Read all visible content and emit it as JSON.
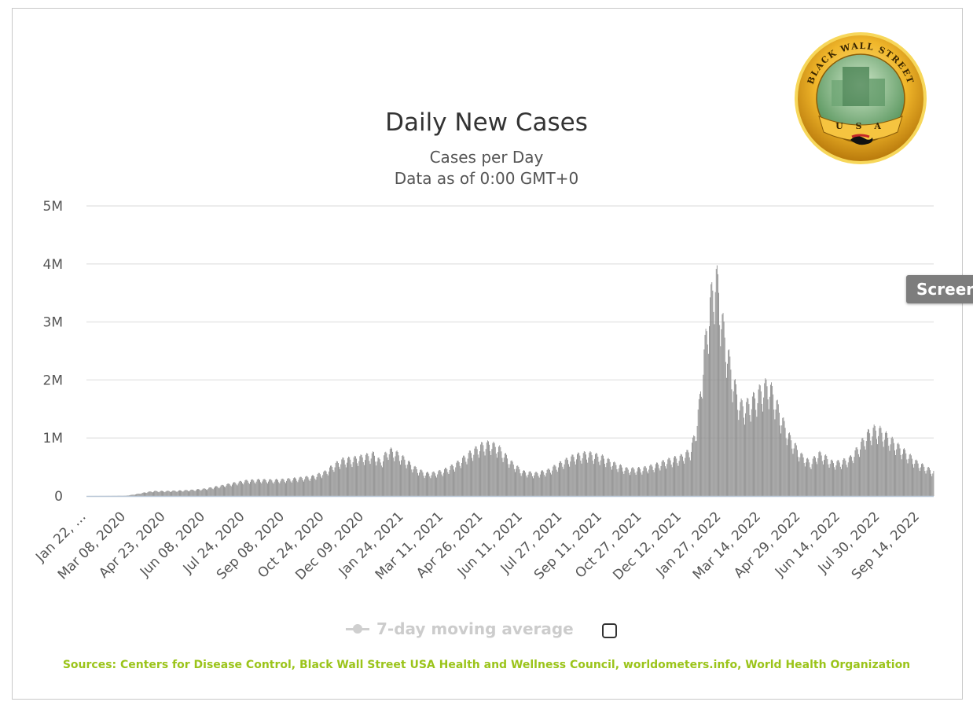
{
  "tooltip_button": {
    "label": "Screen"
  },
  "logo": {
    "ring_text": "BLACK WALL STREET",
    "bottom_text": "U S A",
    "ring_color": "#e0a31c",
    "inner_color": "#5f9e63"
  },
  "legend": {
    "label": "7-day moving average",
    "color": "#cccccc"
  },
  "sources": "Sources: Centers for Disease Control, Black Wall Street USA Health and Wellness Council, worldometers.info, World Health Organization",
  "colors": {
    "bar": "#8c8c8c",
    "grid": "#e6e6e6",
    "axis": "#b9c7d6",
    "sources": "#9bc41a"
  },
  "chart_data": {
    "type": "bar",
    "title": "Daily New Cases",
    "subtitle": [
      "Cases per Day",
      "Data as of 0:00 GMT+0"
    ],
    "xlabel": "",
    "ylabel": "",
    "ylim": [
      0,
      5000000
    ],
    "yticks": [
      {
        "value": 0,
        "label": "0"
      },
      {
        "value": 1000000,
        "label": "1M"
      },
      {
        "value": 2000000,
        "label": "2M"
      },
      {
        "value": 3000000,
        "label": "3M"
      },
      {
        "value": 4000000,
        "label": "4M"
      },
      {
        "value": 5000000,
        "label": "5M"
      }
    ],
    "xlim": [
      "2020-01-22",
      "2022-09-30"
    ],
    "xticks": [
      {
        "date": "2020-01-22",
        "label": "Jan 22, …"
      },
      {
        "date": "2020-03-08",
        "label": "Mar 08, 2020"
      },
      {
        "date": "2020-04-23",
        "label": "Apr 23, 2020"
      },
      {
        "date": "2020-06-08",
        "label": "Jun 08, 2020"
      },
      {
        "date": "2020-07-24",
        "label": "Jul 24, 2020"
      },
      {
        "date": "2020-09-08",
        "label": "Sep 08, 2020"
      },
      {
        "date": "2020-10-24",
        "label": "Oct 24, 2020"
      },
      {
        "date": "2020-12-09",
        "label": "Dec 09, 2020"
      },
      {
        "date": "2021-01-24",
        "label": "Jan 24, 2021"
      },
      {
        "date": "2021-03-11",
        "label": "Mar 11, 2021"
      },
      {
        "date": "2021-04-26",
        "label": "Apr 26, 2021"
      },
      {
        "date": "2021-06-11",
        "label": "Jun 11, 2021"
      },
      {
        "date": "2021-07-27",
        "label": "Jul 27, 2021"
      },
      {
        "date": "2021-09-11",
        "label": "Sep 11, 2021"
      },
      {
        "date": "2021-10-27",
        "label": "Oct 27, 2021"
      },
      {
        "date": "2021-12-12",
        "label": "Dec 12, 2021"
      },
      {
        "date": "2022-01-27",
        "label": "Jan 27, 2022"
      },
      {
        "date": "2022-03-14",
        "label": "Mar 14, 2022"
      },
      {
        "date": "2022-04-29",
        "label": "Apr 29, 2022"
      },
      {
        "date": "2022-06-14",
        "label": "Jun 14, 2022"
      },
      {
        "date": "2022-07-30",
        "label": "Jul 30, 2022"
      },
      {
        "date": "2022-09-14",
        "label": "Sep 14, 2022"
      }
    ],
    "series": [
      {
        "name": "Daily New Cases",
        "points": [
          [
            "2020-01-22",
            0
          ],
          [
            "2020-02-20",
            2000
          ],
          [
            "2020-03-08",
            5000
          ],
          [
            "2020-03-20",
            30000
          ],
          [
            "2020-04-01",
            65000
          ],
          [
            "2020-04-10",
            80000
          ],
          [
            "2020-04-23",
            80000
          ],
          [
            "2020-05-10",
            88000
          ],
          [
            "2020-05-25",
            100000
          ],
          [
            "2020-06-08",
            120000
          ],
          [
            "2020-06-25",
            165000
          ],
          [
            "2020-07-10",
            210000
          ],
          [
            "2020-07-24",
            250000
          ],
          [
            "2020-08-10",
            265000
          ],
          [
            "2020-08-25",
            260000
          ],
          [
            "2020-09-08",
            270000
          ],
          [
            "2020-09-25",
            295000
          ],
          [
            "2020-10-10",
            320000
          ],
          [
            "2020-10-24",
            390000
          ],
          [
            "2020-11-05",
            520000
          ],
          [
            "2020-11-15",
            600000
          ],
          [
            "2020-11-25",
            610000
          ],
          [
            "2020-12-09",
            650000
          ],
          [
            "2020-12-20",
            690000
          ],
          [
            "2020-12-28",
            560000
          ],
          [
            "2021-01-06",
            760000
          ],
          [
            "2021-01-13",
            730000
          ],
          [
            "2021-01-24",
            620000
          ],
          [
            "2021-02-05",
            470000
          ],
          [
            "2021-02-18",
            370000
          ],
          [
            "2021-03-01",
            380000
          ],
          [
            "2021-03-11",
            420000
          ],
          [
            "2021-03-25",
            520000
          ],
          [
            "2021-04-10",
            700000
          ],
          [
            "2021-04-26",
            850000
          ],
          [
            "2021-05-05",
            860000
          ],
          [
            "2021-05-15",
            780000
          ],
          [
            "2021-05-28",
            560000
          ],
          [
            "2021-06-11",
            400000
          ],
          [
            "2021-06-25",
            370000
          ],
          [
            "2021-07-10",
            420000
          ],
          [
            "2021-07-27",
            560000
          ],
          [
            "2021-08-10",
            660000
          ],
          [
            "2021-08-25",
            700000
          ],
          [
            "2021-09-11",
            640000
          ],
          [
            "2021-09-25",
            530000
          ],
          [
            "2021-10-10",
            440000
          ],
          [
            "2021-10-27",
            450000
          ],
          [
            "2021-11-10",
            500000
          ],
          [
            "2021-11-25",
            580000
          ],
          [
            "2021-12-12",
            650000
          ],
          [
            "2021-12-22",
            750000
          ],
          [
            "2021-12-28",
            1050000
          ],
          [
            "2022-01-02",
            1600000
          ],
          [
            "2022-01-06",
            2200000
          ],
          [
            "2022-01-11",
            2900000
          ],
          [
            "2022-01-16",
            3350000
          ],
          [
            "2022-01-20",
            3700000
          ],
          [
            "2022-01-24",
            3400000
          ],
          [
            "2022-01-28",
            2900000
          ],
          [
            "2022-02-03",
            2400000
          ],
          [
            "2022-02-10",
            1900000
          ],
          [
            "2022-02-18",
            1500000
          ],
          [
            "2022-02-25",
            1500000
          ],
          [
            "2022-03-05",
            1600000
          ],
          [
            "2022-03-14",
            1750000
          ],
          [
            "2022-03-22",
            1850000
          ],
          [
            "2022-03-28",
            1700000
          ],
          [
            "2022-04-05",
            1350000
          ],
          [
            "2022-04-15",
            1000000
          ],
          [
            "2022-04-29",
            680000
          ],
          [
            "2022-05-10",
            550000
          ],
          [
            "2022-05-20",
            700000
          ],
          [
            "2022-05-28",
            640000
          ],
          [
            "2022-06-05",
            550000
          ],
          [
            "2022-06-14",
            560000
          ],
          [
            "2022-06-25",
            620000
          ],
          [
            "2022-07-05",
            800000
          ],
          [
            "2022-07-15",
            1020000
          ],
          [
            "2022-07-23",
            1100000
          ],
          [
            "2022-07-30",
            1080000
          ],
          [
            "2022-08-10",
            950000
          ],
          [
            "2022-08-20",
            820000
          ],
          [
            "2022-08-30",
            700000
          ],
          [
            "2022-09-10",
            560000
          ],
          [
            "2022-09-20",
            480000
          ],
          [
            "2022-09-30",
            400000
          ]
        ]
      }
    ]
  }
}
